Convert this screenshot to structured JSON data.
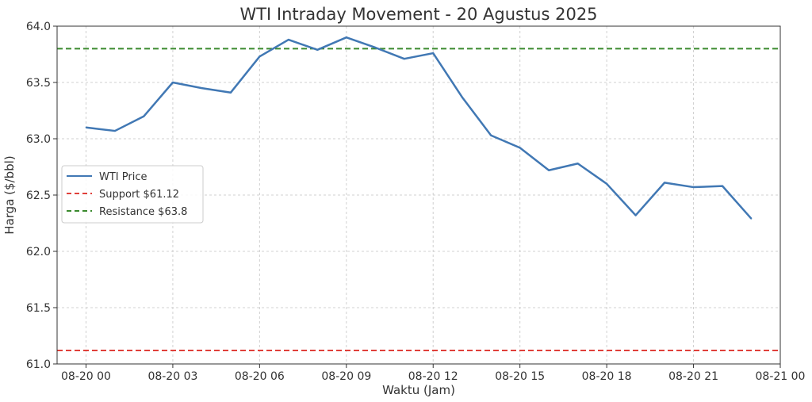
{
  "chart_data": {
    "type": "line",
    "title": "WTI Intraday Movement - 20 Agustus 2025",
    "xlabel": "Waktu (Jam)",
    "ylabel": "Harga ($/bbl)",
    "x_ticks": [
      "08-20 00",
      "08-20 03",
      "08-20 06",
      "08-20 09",
      "08-20 12",
      "08-20 15",
      "08-20 18",
      "08-20 21",
      "08-21 00"
    ],
    "y_ticks": [
      "61.0",
      "61.5",
      "62.0",
      "62.5",
      "63.0",
      "63.5",
      "64.0"
    ],
    "ylim": [
      61.0,
      64.0
    ],
    "xlim": [
      "2025-08-19 23:00",
      "2025-08-21 00:00"
    ],
    "grid": true,
    "legend_position": "center-left",
    "series": [
      {
        "name": "WTI Price",
        "style": "solid",
        "color": "#4178b4",
        "x": [
          "2025-08-20 00:00",
          "2025-08-20 01:00",
          "2025-08-20 02:00",
          "2025-08-20 03:00",
          "2025-08-20 04:00",
          "2025-08-20 05:00",
          "2025-08-20 06:00",
          "2025-08-20 07:00",
          "2025-08-20 08:00",
          "2025-08-20 09:00",
          "2025-08-20 10:00",
          "2025-08-20 11:00",
          "2025-08-20 12:00",
          "2025-08-20 13:00",
          "2025-08-20 14:00",
          "2025-08-20 15:00",
          "2025-08-20 16:00",
          "2025-08-20 17:00",
          "2025-08-20 18:00",
          "2025-08-20 19:00",
          "2025-08-20 20:00",
          "2025-08-20 21:00",
          "2025-08-20 22:00",
          "2025-08-20 23:00"
        ],
        "values": [
          63.1,
          63.07,
          63.2,
          63.5,
          63.45,
          63.41,
          63.73,
          63.88,
          63.79,
          63.9,
          63.81,
          63.71,
          63.76,
          63.37,
          63.03,
          62.92,
          62.72,
          62.78,
          62.6,
          62.32,
          62.61,
          62.57,
          62.58,
          62.29
        ]
      },
      {
        "name": "Support $61.12",
        "style": "dashed",
        "color": "#e0403a",
        "constant": 61.12
      },
      {
        "name": "Resistance $63.8",
        "style": "dashed",
        "color": "#3b8a2e",
        "constant": 63.8
      }
    ]
  }
}
